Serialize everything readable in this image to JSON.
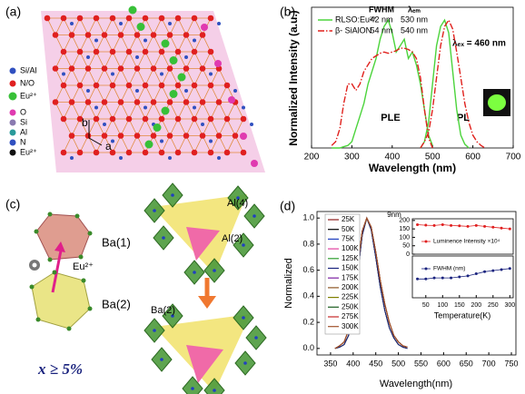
{
  "panel_a": {
    "label": "(a)",
    "legend_1": [
      "Si/Al",
      "N/O",
      "Eu²⁺"
    ],
    "legend_2": [
      "O",
      "Si",
      "Al",
      "N",
      "Eu²⁺"
    ],
    "axes": [
      "b",
      "a"
    ]
  },
  "panel_c": {
    "label": "(c)",
    "labels": [
      "Ba(1)",
      "Eu²⁺",
      "Ba(2)",
      "x ≥ 5%",
      "Al(4)",
      "Al(2)",
      "Ba(2)"
    ]
  },
  "chart_data": [
    {
      "type": "line",
      "panel_label": "(b)",
      "xlabel": "Wavelength (nm)",
      "ylabel": "Normalized Intensity (a.u.)",
      "legend_headers": [
        "FWHM",
        "λₑₘ"
      ],
      "annotations": [
        "PLE",
        "PL",
        "λₑₓ = 460 nm"
      ],
      "x": [
        250,
        260,
        270,
        280,
        290,
        300,
        310,
        320,
        330,
        340,
        350,
        360,
        370,
        380,
        390,
        400,
        410,
        420,
        430,
        440,
        450,
        460,
        470,
        480,
        490,
        500,
        510,
        520,
        530,
        540,
        550,
        560,
        570,
        580,
        590,
        600,
        610,
        620,
        630
      ],
      "xlim": [
        200,
        700
      ],
      "xticks": [
        200,
        300,
        400,
        500,
        600,
        700
      ],
      "ylim": [
        0,
        1.1
      ],
      "series": [
        {
          "name": "RLSO:Eu²⁺",
          "color": "#4cd43c",
          "fwhm": "42 nm",
          "lambda_em": "530 nm",
          "ple": [
            0,
            0,
            0,
            0.01,
            0.02,
            0.05,
            0.15,
            0.25,
            0.35,
            0.5,
            0.6,
            0.7,
            0.85,
            0.95,
            1.0,
            0.9,
            0.75,
            0.8,
            0.85,
            0.7,
            0.75,
            0.65,
            0.5,
            0.3,
            0.1,
            0.02,
            null,
            null,
            null,
            null,
            null,
            null,
            null,
            null,
            null,
            null,
            null,
            null,
            null
          ],
          "pl": [
            null,
            null,
            null,
            null,
            null,
            null,
            null,
            null,
            null,
            null,
            null,
            null,
            null,
            null,
            null,
            null,
            null,
            null,
            null,
            null,
            null,
            null,
            0,
            0.05,
            0.2,
            0.5,
            0.8,
            0.95,
            1.0,
            0.9,
            0.6,
            0.3,
            0.1,
            0.03,
            0,
            null,
            null,
            null,
            null
          ]
        },
        {
          "name": "β- SiAlON",
          "color": "#e0201c",
          "dash": "7,2,1.5,2",
          "fwhm": "54 nm",
          "lambda_em": "540 nm",
          "ple": [
            0.02,
            0.05,
            0.15,
            0.35,
            0.5,
            0.5,
            0.45,
            0.5,
            0.6,
            0.65,
            0.7,
            0.72,
            0.74,
            0.75,
            0.74,
            0.75,
            0.76,
            0.78,
            0.78,
            0.77,
            0.75,
            0.7,
            0.55,
            0.3,
            0.08,
            0,
            null,
            null,
            null,
            null,
            null,
            null,
            null,
            null,
            null,
            null,
            null,
            null,
            null
          ],
          "pl": [
            null,
            null,
            null,
            null,
            null,
            null,
            null,
            null,
            null,
            null,
            null,
            null,
            null,
            null,
            null,
            null,
            null,
            null,
            null,
            null,
            null,
            null,
            0,
            0.05,
            0.12,
            0.3,
            0.55,
            0.8,
            0.95,
            1.0,
            0.93,
            0.75,
            0.55,
            0.35,
            0.2,
            0.1,
            0.05,
            0.02,
            0
          ]
        }
      ]
    },
    {
      "type": "line",
      "panel_label": "(d)",
      "xlabel": "Wavelength(nm)",
      "ylabel": "Normalized",
      "annotations": [
        "9nm"
      ],
      "x": [
        360,
        370,
        380,
        390,
        400,
        410,
        420,
        430,
        440,
        450,
        460,
        470,
        480,
        490,
        500,
        510,
        520
      ],
      "xlim": [
        320,
        760
      ],
      "xticks": [
        350,
        400,
        450,
        500,
        550,
        600,
        650,
        700,
        750
      ],
      "ylim": [
        -0.05,
        1.05
      ],
      "yticks": [
        {
          "value": 0,
          "label": "0.0"
        },
        0.2,
        0.4,
        0.6,
        0.8,
        {
          "value": 1,
          "label": "1.0"
        }
      ],
      "series": [
        {
          "name": "25K",
          "color": "#8b1a1a",
          "values": [
            0,
            0.01,
            0.03,
            0.1,
            0.28,
            0.58,
            0.87,
            1.0,
            0.91,
            0.7,
            0.47,
            0.29,
            0.16,
            0.08,
            0.03,
            0.01,
            0
          ]
        },
        {
          "name": "50K",
          "color": "#000000",
          "values": [
            0,
            0.01,
            0.03,
            0.1,
            0.28,
            0.58,
            0.87,
            1.0,
            0.91,
            0.7,
            0.47,
            0.29,
            0.16,
            0.08,
            0.03,
            0.01,
            0
          ]
        },
        {
          "name": "75K",
          "color": "#1f3fbf",
          "values": [
            0,
            0.01,
            0.03,
            0.1,
            0.28,
            0.58,
            0.87,
            1.0,
            0.91,
            0.7,
            0.47,
            0.29,
            0.16,
            0.08,
            0.03,
            0.01,
            0
          ]
        },
        {
          "name": "100K",
          "color": "#e040a0",
          "values": [
            0,
            0.01,
            0.03,
            0.1,
            0.28,
            0.58,
            0.87,
            1.0,
            0.91,
            0.7,
            0.47,
            0.29,
            0.16,
            0.08,
            0.03,
            0.01,
            0
          ]
        },
        {
          "name": "125K",
          "color": "#2e9e2e",
          "values": [
            0,
            0.01,
            0.03,
            0.1,
            0.28,
            0.58,
            0.87,
            1.0,
            0.91,
            0.7,
            0.47,
            0.29,
            0.16,
            0.08,
            0.03,
            0.01,
            0
          ]
        },
        {
          "name": "150K",
          "color": "#1a237e",
          "values": [
            0,
            0.01,
            0.03,
            0.1,
            0.28,
            0.58,
            0.87,
            1.0,
            0.91,
            0.7,
            0.47,
            0.29,
            0.16,
            0.08,
            0.03,
            0.01,
            0
          ]
        },
        {
          "name": "175K",
          "color": "#7b1fa2",
          "values": [
            0,
            0.02,
            0.05,
            0.14,
            0.33,
            0.63,
            0.9,
            1.0,
            0.93,
            0.74,
            0.52,
            0.34,
            0.2,
            0.1,
            0.05,
            0.02,
            0.01
          ]
        },
        {
          "name": "200K",
          "color": "#8d5524",
          "values": [
            0,
            0.02,
            0.05,
            0.14,
            0.33,
            0.63,
            0.9,
            1.0,
            0.93,
            0.74,
            0.52,
            0.34,
            0.2,
            0.1,
            0.05,
            0.02,
            0.01
          ]
        },
        {
          "name": "225K",
          "color": "#808000",
          "values": [
            0,
            0.02,
            0.05,
            0.14,
            0.33,
            0.63,
            0.9,
            1.0,
            0.93,
            0.74,
            0.52,
            0.34,
            0.2,
            0.1,
            0.05,
            0.02,
            0.01
          ]
        },
        {
          "name": "250K",
          "color": "#1b5e20",
          "values": [
            0,
            0.02,
            0.05,
            0.14,
            0.33,
            0.63,
            0.9,
            1.0,
            0.93,
            0.74,
            0.52,
            0.34,
            0.2,
            0.1,
            0.05,
            0.02,
            0.01
          ]
        },
        {
          "name": "275K",
          "color": "#c62828",
          "values": [
            0,
            0.02,
            0.05,
            0.14,
            0.33,
            0.63,
            0.9,
            1.0,
            0.93,
            0.74,
            0.52,
            0.34,
            0.2,
            0.1,
            0.05,
            0.02,
            0.01
          ]
        },
        {
          "name": "300K",
          "color": "#a0522d",
          "values": [
            0,
            0.02,
            0.05,
            0.14,
            0.33,
            0.63,
            0.9,
            1.0,
            0.93,
            0.74,
            0.52,
            0.34,
            0.2,
            0.1,
            0.05,
            0.02,
            0.01
          ]
        }
      ]
    },
    {
      "type": "line",
      "x": [
        25,
        50,
        75,
        100,
        125,
        150,
        175,
        200,
        225,
        250,
        275,
        300
      ],
      "xlim": [
        10,
        310
      ],
      "ylim": [
        0,
        210
      ],
      "yticks": [
        0,
        50,
        100,
        150,
        200
      ],
      "series": [
        {
          "name": "Luminence Intensity ×10⁴",
          "color": "#e02020",
          "marker": true,
          "values": [
            175,
            172,
            170,
            175,
            170,
            168,
            165,
            170,
            165,
            160,
            155,
            150
          ]
        }
      ]
    },
    {
      "type": "line",
      "xlabel": "Temperature(K)",
      "x": [
        25,
        50,
        75,
        100,
        125,
        150,
        175,
        200,
        225,
        250,
        275,
        300
      ],
      "xlim": [
        10,
        310
      ],
      "xticks": [
        50,
        100,
        150,
        200,
        250,
        300
      ],
      "ylim": [
        30,
        70
      ],
      "series": [
        {
          "name": "FWHM (nm)",
          "color": "#1a237e",
          "marker": true,
          "values": [
            48,
            48,
            49,
            49,
            49,
            50,
            51,
            53,
            55,
            56,
            57,
            58
          ]
        }
      ]
    }
  ]
}
